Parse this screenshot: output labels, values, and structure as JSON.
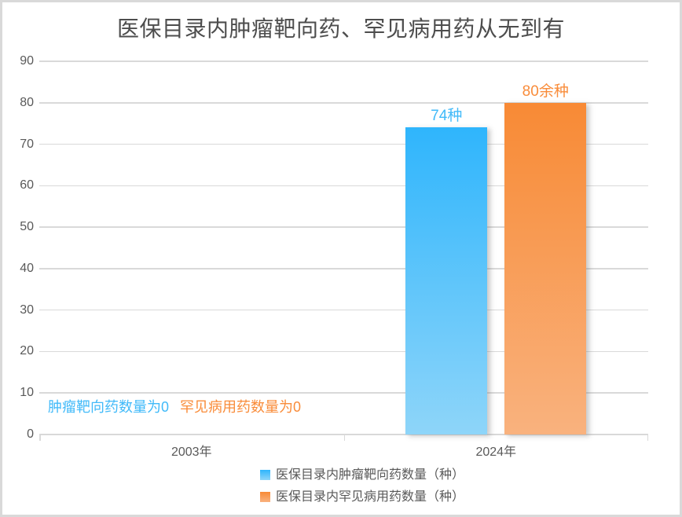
{
  "page": {
    "background": "#ffffff",
    "border_color": "#d9d9d9"
  },
  "chart_data": {
    "type": "bar",
    "title": "医保目录内肿瘤靶向药、罕见病用药从无到有",
    "title_color": "#4d4d4d",
    "categories": [
      "2003年",
      "2024年"
    ],
    "series": [
      {
        "name": "医保目录内肿瘤靶向药数量（种）",
        "values": [
          0,
          74
        ],
        "data_labels": [
          "",
          "74种"
        ],
        "color_top": "#2fb5fc",
        "color_bottom": "#8ed5f9",
        "label_color": "#41baf9"
      },
      {
        "name": "医保目录内罕见病用药数量（种）",
        "values": [
          0,
          80
        ],
        "data_labels": [
          "",
          "80余种"
        ],
        "color_top": "#f88a35",
        "color_bottom": "#f9b27e",
        "label_color": "#f98c3a"
      }
    ],
    "annotations": [
      {
        "text": "肿瘤靶向药数量为0",
        "color": "#41baf9"
      },
      {
        "text": "罕见病用药数量为0",
        "color": "#f98c3a"
      }
    ],
    "xlabel": "",
    "ylabel": "",
    "ylim": [
      0,
      90
    ],
    "ytick_interval": 10,
    "grid": true,
    "grid_color": "#d9d9d9",
    "axis_text_color": "#595959",
    "legend_position": "bottom"
  }
}
